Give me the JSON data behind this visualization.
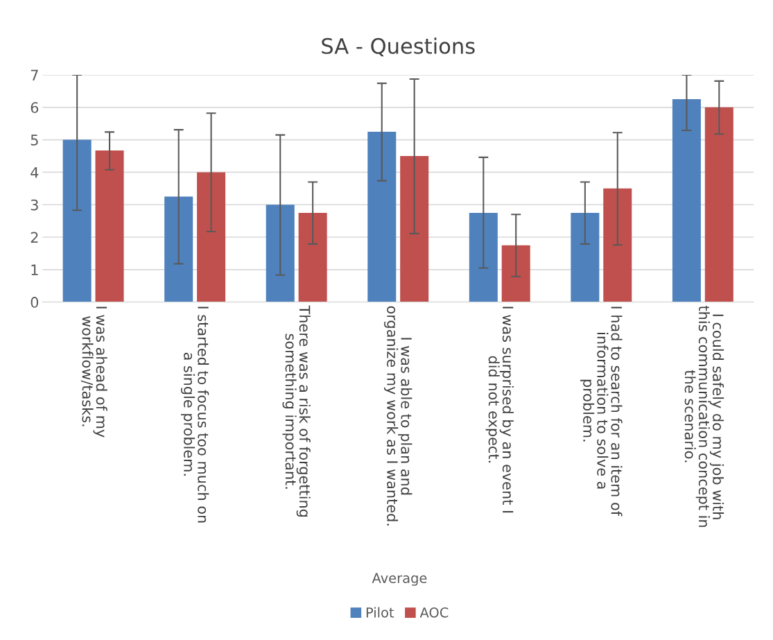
{
  "chart_data": {
    "type": "bar",
    "title": "SA - Questions",
    "xlabel": "Average",
    "categories": [
      "I was ahead of my workflow/tasks.",
      "I started to focus too much on a single problem.",
      "There was a risk of forgetting something important.",
      "I was able to plan and organize my work as I wanted.",
      "I was surprised by an event I did not expect.",
      "I had to search for an item of information to solve a problem.",
      "I could safely do my job with this communication concept in the scenario."
    ],
    "series": [
      {
        "name": "Pilot",
        "color": "#4f81bd",
        "values": [
          5,
          3.25,
          3,
          5.25,
          2.75,
          2.75,
          6.25
        ],
        "errors": [
          [
            2.83,
            7
          ],
          [
            1.18,
            5.31
          ],
          [
            0.83,
            5.15
          ],
          [
            3.74,
            6.74
          ],
          [
            1.05,
            4.46
          ],
          [
            1.79,
            3.7
          ],
          [
            5.29,
            7
          ]
        ]
      },
      {
        "name": "AOC",
        "color": "#c0504d",
        "values": [
          4.67,
          4,
          2.75,
          4.5,
          1.75,
          3.5,
          6
        ],
        "errors": [
          [
            4.08,
            5.24
          ],
          [
            2.17,
            5.82
          ],
          [
            1.79,
            3.7
          ],
          [
            2.11,
            6.87
          ],
          [
            0.79,
            2.7
          ],
          [
            1.76,
            5.22
          ],
          [
            5.18,
            6.81
          ]
        ]
      }
    ],
    "ylim": [
      0,
      7
    ],
    "yticks": [
      0,
      1,
      2,
      3,
      4,
      5,
      6,
      7
    ],
    "grid": "y",
    "legend": "bottom"
  }
}
